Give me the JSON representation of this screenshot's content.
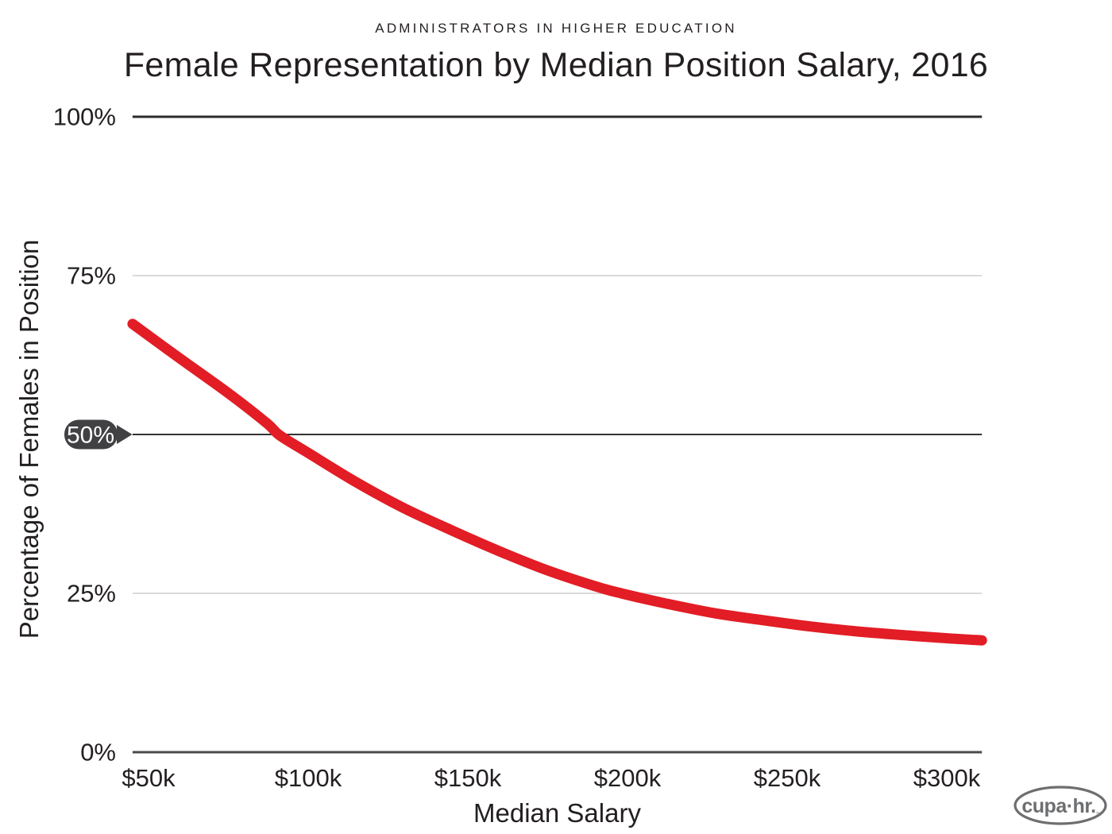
{
  "header": {
    "kicker": "ADMINISTRATORS IN HIGHER EDUCATION",
    "title": "Female Representation by Median Position Salary, 2016"
  },
  "colors": {
    "accent_red": "#e21d25",
    "grid_light": "#d5d5d5",
    "grid_dark": "#2b2b2b",
    "axis_zero": "#4a4a4b",
    "grid_fifty": "#333333",
    "badge_bg": "#414042",
    "badge_text": "#ffffff",
    "text": "#231f20",
    "logo_gray": "#6d6e70"
  },
  "chart_data": {
    "type": "line",
    "title": "Female Representation by Median Position Salary, 2016",
    "kicker": "ADMINISTRATORS IN HIGHER EDUCATION",
    "xlabel": "Median Salary",
    "ylabel": "Percentage of Females in Position",
    "xlim": [
      45,
      311
    ],
    "ylim": [
      0,
      100
    ],
    "grid": "horizontal-only",
    "legend": "none",
    "x_ticks": [
      {
        "value": 50,
        "label": "$50k"
      },
      {
        "value": 100,
        "label": "$100k"
      },
      {
        "value": 150,
        "label": "$150k"
      },
      {
        "value": 200,
        "label": "$200k"
      },
      {
        "value": 250,
        "label": "$250k"
      },
      {
        "value": 300,
        "label": "$300k"
      }
    ],
    "y_ticks": [
      {
        "value": 0,
        "label": "0%",
        "style": "dark"
      },
      {
        "value": 25,
        "label": "25%",
        "style": "light"
      },
      {
        "value": 50,
        "label": "50%",
        "style": "dark",
        "badge": true
      },
      {
        "value": 75,
        "label": "75%",
        "style": "light"
      },
      {
        "value": 100,
        "label": "100%",
        "style": "dark"
      }
    ],
    "annotation": {
      "label": "50%",
      "y": 50
    },
    "series": [
      {
        "name": "Percentage of females in position",
        "color": "#e21d25",
        "points": [
          [
            45,
            67.4
          ],
          [
            60,
            61.9
          ],
          [
            75,
            56.5
          ],
          [
            87,
            51.8
          ],
          [
            91,
            49.9
          ],
          [
            100,
            47.1
          ],
          [
            115,
            42.5
          ],
          [
            130,
            38.4
          ],
          [
            145,
            34.9
          ],
          [
            160,
            31.6
          ],
          [
            175,
            28.6
          ],
          [
            190,
            26.1
          ],
          [
            198,
            25.0
          ],
          [
            212,
            23.4
          ],
          [
            227,
            21.9
          ],
          [
            242,
            20.8
          ],
          [
            257,
            19.8
          ],
          [
            272,
            19.0
          ],
          [
            287,
            18.4
          ],
          [
            301,
            17.9
          ],
          [
            311,
            17.6
          ]
        ]
      }
    ]
  },
  "logo": {
    "text": "cupa·hr.",
    "tm": "™"
  }
}
